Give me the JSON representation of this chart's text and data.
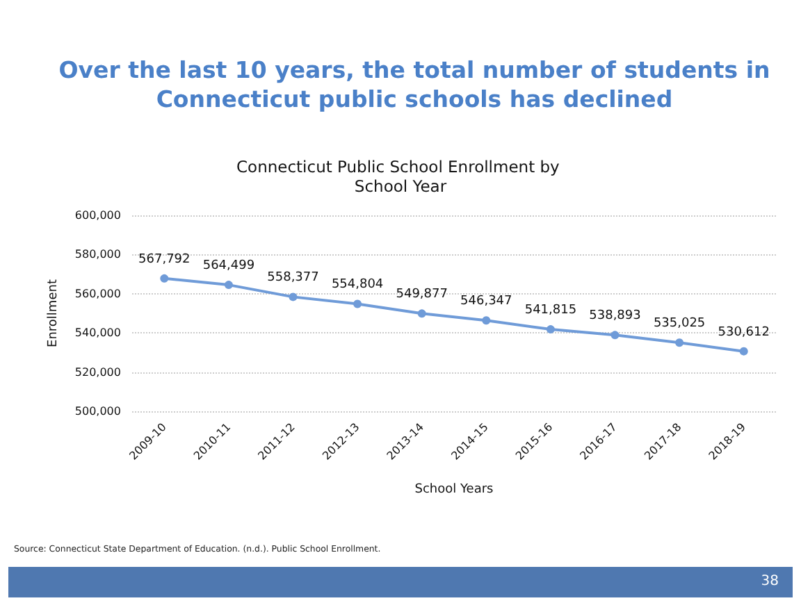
{
  "chart_data": {
    "type": "line",
    "title": "Over the last 10 years, the total number of students in Connecticut public schools has declined",
    "subtitle": "Connecticut Public School Enrollment by School Year",
    "xlabel": "School Years",
    "ylabel": "Enrollment",
    "categories": [
      "2009-10",
      "2010-11",
      "2011-12",
      "2012-13",
      "2013-14",
      "2014-15",
      "2015-16",
      "2016-17",
      "2017-18",
      "2018-19"
    ],
    "series": [
      {
        "color": "#6f9bd8",
        "values": [
          567792,
          564499,
          558377,
          554804,
          549877,
          546347,
          541815,
          538893,
          535025,
          530612
        ],
        "value_labels": [
          "567,792",
          "564,499",
          "558,377",
          "554,804",
          "549,877",
          "546,347",
          "541,815",
          "538,893",
          "535,025",
          "530,612"
        ]
      }
    ],
    "ylim": [
      500000,
      600000
    ],
    "yticks": [
      {
        "value": 500000,
        "label": "500,000"
      },
      {
        "value": 520000,
        "label": "520,000"
      },
      {
        "value": 540000,
        "label": "540,000"
      },
      {
        "value": 560000,
        "label": "560,000"
      },
      {
        "value": 580000,
        "label": "580,000"
      },
      {
        "value": 600000,
        "label": "600,000"
      }
    ],
    "grid": "y",
    "marker": "circle",
    "line_style": "solid",
    "annotations": [
      "Source: Connecticut State Department of Education. (n.d.). Public School Enrollment.",
      "38"
    ]
  }
}
